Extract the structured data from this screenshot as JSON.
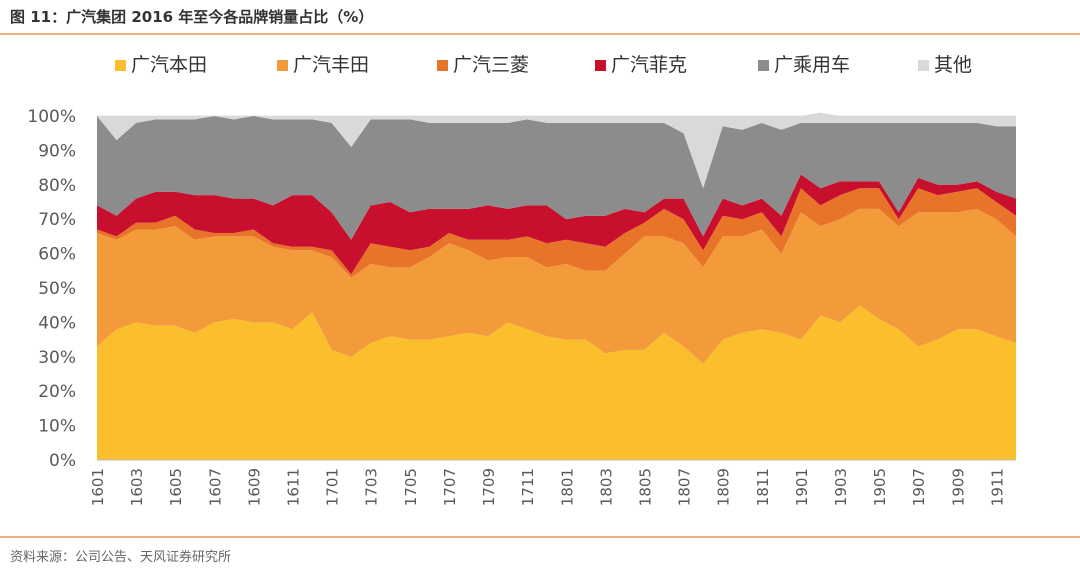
{
  "header": {
    "title": "图 11：广汽集团 2016 年至今各品牌销量占比（%）"
  },
  "footer": {
    "source": "资料来源：公司公告、天风证券研究所"
  },
  "chart_data": {
    "type": "area",
    "stacked": true,
    "title": "广汽集团 2016 年至今各品牌销量占比（%）",
    "xlabel": "",
    "ylabel": "",
    "ylim": [
      0,
      100
    ],
    "y_ticks": [
      "0%",
      "10%",
      "20%",
      "30%",
      "40%",
      "50%",
      "60%",
      "70%",
      "80%",
      "90%",
      "100%"
    ],
    "x": [
      "1601",
      "1602",
      "1603",
      "1604",
      "1605",
      "1606",
      "1607",
      "1608",
      "1609",
      "1610",
      "1611",
      "1612",
      "1701",
      "1702",
      "1703",
      "1704",
      "1705",
      "1706",
      "1707",
      "1708",
      "1709",
      "1710",
      "1711",
      "1712",
      "1801",
      "1802",
      "1803",
      "1804",
      "1805",
      "1806",
      "1807",
      "1808",
      "1809",
      "1810",
      "1811",
      "1812",
      "1901",
      "1902",
      "1903",
      "1904",
      "1905",
      "1906",
      "1907",
      "1908",
      "1909",
      "1910",
      "1911",
      "1912"
    ],
    "x_tick_labels": [
      "1601",
      "1603",
      "1605",
      "1607",
      "1609",
      "1611",
      "1701",
      "1703",
      "1705",
      "1707",
      "1709",
      "1711",
      "1801",
      "1803",
      "1805",
      "1807",
      "1809",
      "1811",
      "1901",
      "1903",
      "1905",
      "1907",
      "1909",
      "1911"
    ],
    "legend_position": "top",
    "series": [
      {
        "name": "广汽本田",
        "color": "#FBBF2D",
        "values": [
          33,
          38,
          40,
          39,
          39,
          37,
          40,
          41,
          40,
          40,
          38,
          43,
          32,
          30,
          34,
          36,
          35,
          35,
          36,
          37,
          36,
          40,
          38,
          36,
          35,
          35,
          31,
          32,
          32,
          37,
          33,
          28,
          35,
          37,
          38,
          37,
          35,
          42,
          40,
          45,
          41,
          38,
          33,
          35,
          38,
          38,
          36,
          34
        ]
      },
      {
        "name": "广汽丰田",
        "color": "#F39A3A",
        "values": [
          33,
          26,
          27,
          28,
          29,
          27,
          25,
          24,
          25,
          22,
          23,
          18,
          27,
          23,
          23,
          20,
          21,
          24,
          27,
          24,
          22,
          19,
          21,
          20,
          22,
          20,
          24,
          28,
          33,
          28,
          30,
          28,
          30,
          28,
          29,
          23,
          37,
          26,
          30,
          28,
          32,
          30,
          39,
          37,
          34,
          35,
          34,
          31
        ]
      },
      {
        "name": "广汽三菱",
        "color": "#E8742A",
        "values": [
          1,
          1,
          2,
          2,
          3,
          3,
          1,
          1,
          2,
          1,
          1,
          1,
          2,
          1,
          6,
          6,
          5,
          3,
          3,
          3,
          6,
          5,
          6,
          7,
          7,
          8,
          7,
          6,
          4,
          8,
          7,
          5,
          6,
          5,
          5,
          5,
          7,
          6,
          7,
          6,
          6,
          2,
          7,
          5,
          6,
          6,
          5,
          6
        ]
      },
      {
        "name": "广汽菲克",
        "color": "#C8102E",
        "values": [
          7,
          6,
          7,
          9,
          7,
          10,
          11,
          10,
          9,
          11,
          15,
          15,
          11,
          10,
          11,
          13,
          11,
          11,
          7,
          9,
          10,
          9,
          9,
          11,
          6,
          8,
          9,
          7,
          3,
          3,
          6,
          4,
          5,
          4,
          4,
          6,
          4,
          5,
          4,
          2,
          2,
          2,
          3,
          3,
          2,
          2,
          3,
          5
        ]
      },
      {
        "name": "广乘用车",
        "color": "#8C8C8C",
        "values": [
          26,
          22,
          22,
          21,
          21,
          22,
          23,
          23,
          24,
          25,
          22,
          22,
          26,
          27,
          25,
          24,
          27,
          25,
          25,
          25,
          24,
          25,
          25,
          24,
          28,
          27,
          27,
          25,
          26,
          22,
          19,
          14,
          21,
          22,
          22,
          25,
          15,
          19,
          17,
          17,
          17,
          26,
          16,
          18,
          18,
          17,
          19,
          21
        ]
      },
      {
        "name": "其他",
        "color": "#D9D9D9",
        "values": [
          0,
          7,
          2,
          1,
          1,
          1,
          0,
          1,
          0,
          1,
          1,
          1,
          2,
          9,
          1,
          1,
          1,
          2,
          2,
          2,
          2,
          2,
          1,
          2,
          2,
          2,
          2,
          2,
          2,
          2,
          5,
          21,
          3,
          4,
          2,
          4,
          2,
          3,
          2,
          2,
          2,
          2,
          2,
          2,
          2,
          2,
          3,
          3
        ]
      }
    ]
  }
}
